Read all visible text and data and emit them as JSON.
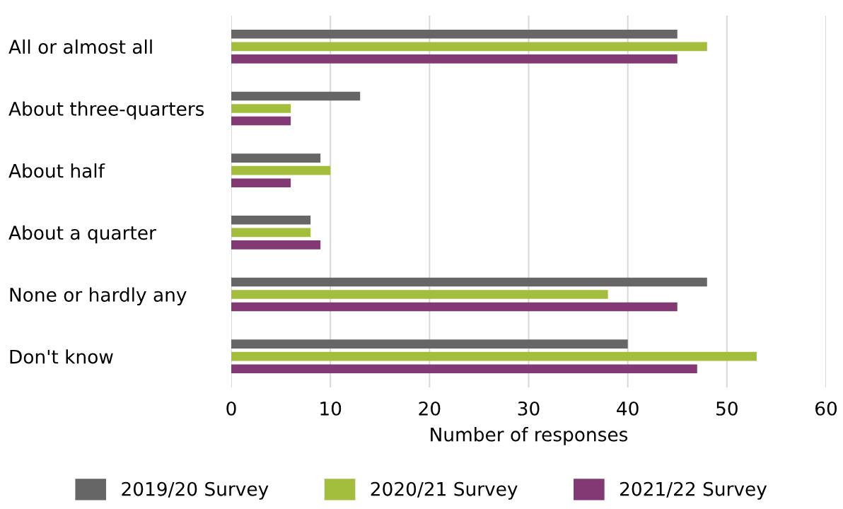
{
  "chart_data": {
    "type": "bar",
    "orientation": "horizontal",
    "xlabel": "Number of responses",
    "categories": [
      "All or almost all",
      "About three-quarters",
      "About half",
      "About a quarter",
      "None or hardly any",
      "Don't know"
    ],
    "series": [
      {
        "name": "2019/20 Survey",
        "color": "#666666",
        "values": [
          45,
          13,
          9,
          8,
          48,
          40
        ]
      },
      {
        "name": "2020/21 Survey",
        "color": "#a3be3c",
        "values": [
          48,
          6,
          10,
          8,
          38,
          53
        ]
      },
      {
        "name": "2021/22 Survey",
        "color": "#833a74",
        "values": [
          45,
          6,
          6,
          9,
          45,
          47
        ]
      }
    ],
    "xlim": [
      0,
      60
    ],
    "xticks": [
      0,
      10,
      20,
      30,
      40,
      50,
      60
    ],
    "grid": "x",
    "legend": "bottom"
  }
}
